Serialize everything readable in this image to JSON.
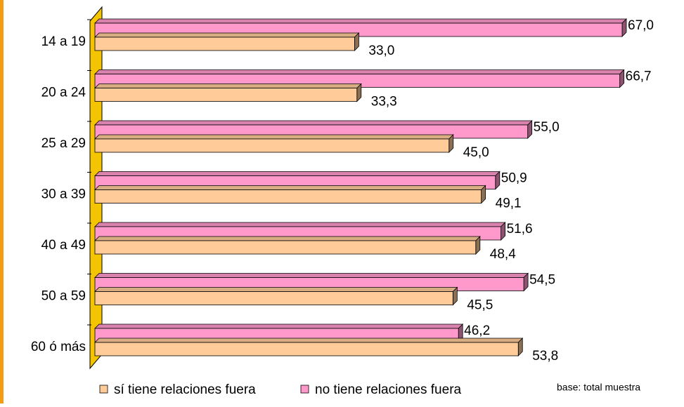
{
  "chart_data": {
    "type": "bar",
    "orientation": "horizontal",
    "categories": [
      "14 a 19",
      "20 a 24",
      "25 a 29",
      "30 a 39",
      "40 a 49",
      "50 a 59",
      "60 ó más"
    ],
    "series": [
      {
        "name": "sí tiene relaciones fuera",
        "color": "#ffcc99",
        "values": [
          33.0,
          33.3,
          45.0,
          49.1,
          48.4,
          45.5,
          53.8
        ],
        "value_labels": [
          "33,0",
          "33,3",
          "45,0",
          "49,1",
          "48,4",
          "45,5",
          "53,8"
        ]
      },
      {
        "name": "no tiene relaciones fuera",
        "color": "#ff99cc",
        "values": [
          67.0,
          66.7,
          55.0,
          50.9,
          51.6,
          54.5,
          46.2
        ],
        "value_labels": [
          "67,0",
          "66,7",
          "55,0",
          "50,9",
          "51,6",
          "54,5",
          "46,2"
        ]
      }
    ],
    "note": "base: total muestra"
  }
}
